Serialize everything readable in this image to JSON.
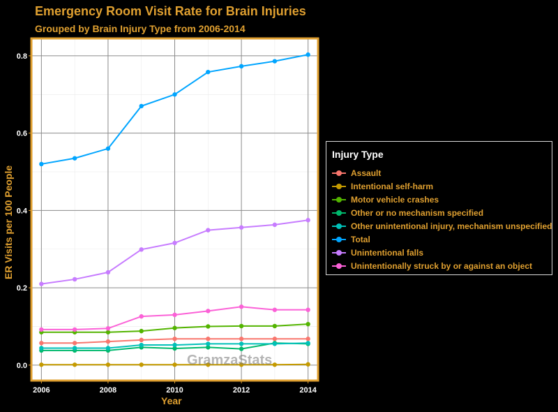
{
  "chart_data": {
    "type": "line",
    "title": "Emergency Room Visit Rate for Brain Injuries",
    "subtitle": "Grouped by Brain Injury Type from 2006-2014",
    "xlabel": "Year",
    "ylabel": "ER Visits per 100 People",
    "x": [
      2006,
      2007,
      2008,
      2009,
      2010,
      2011,
      2012,
      2013,
      2014
    ],
    "xlim": [
      2005.7,
      2014.3
    ],
    "ylim": [
      -0.04,
      0.845
    ],
    "xticks": [
      2006,
      2008,
      2010,
      2012,
      2014
    ],
    "yticks": [
      0.0,
      0.2,
      0.4,
      0.6,
      0.8
    ],
    "ytick_labels": [
      "0.0",
      "0.2",
      "0.4",
      "0.6",
      "0.8"
    ],
    "grid": true,
    "legend_title": "Injury Type",
    "legend_position": "right",
    "watermark": "GramzaStats",
    "series": [
      {
        "name": "Assault",
        "color": "#f8766d",
        "values": [
          0.057,
          0.057,
          0.061,
          0.065,
          0.068,
          0.068,
          0.068,
          0.068,
          0.068
        ]
      },
      {
        "name": "Intentional self-harm",
        "color": "#c49a00",
        "values": [
          0.001,
          0.001,
          0.001,
          0.001,
          0.001,
          0.001,
          0.001,
          0.001,
          0.002
        ]
      },
      {
        "name": "Motor vehicle crashes",
        "color": "#53b400",
        "values": [
          0.085,
          0.085,
          0.085,
          0.088,
          0.096,
          0.1,
          0.101,
          0.101,
          0.106
        ]
      },
      {
        "name": "Other or no mechanism specified",
        "color": "#00b96d",
        "values": [
          0.038,
          0.038,
          0.038,
          0.046,
          0.043,
          0.046,
          0.042,
          0.057,
          0.055
        ]
      },
      {
        "name": "Other unintentional injury, mechanism unspecified",
        "color": "#00c0b8",
        "values": [
          0.044,
          0.044,
          0.044,
          0.052,
          0.052,
          0.055,
          0.055,
          0.055,
          0.057
        ]
      },
      {
        "name": "Total",
        "color": "#00a5ff",
        "values": [
          0.52,
          0.535,
          0.56,
          0.67,
          0.7,
          0.758,
          0.773,
          0.786,
          0.803
        ]
      },
      {
        "name": "Unintentional falls",
        "color": "#c77cff",
        "values": [
          0.21,
          0.222,
          0.24,
          0.299,
          0.316,
          0.349,
          0.356,
          0.363,
          0.375
        ]
      },
      {
        "name": "Unintentionally struck by or against an object",
        "color": "#fb61d7",
        "values": [
          0.092,
          0.092,
          0.095,
          0.126,
          0.13,
          0.14,
          0.151,
          0.143,
          0.143
        ]
      }
    ]
  }
}
